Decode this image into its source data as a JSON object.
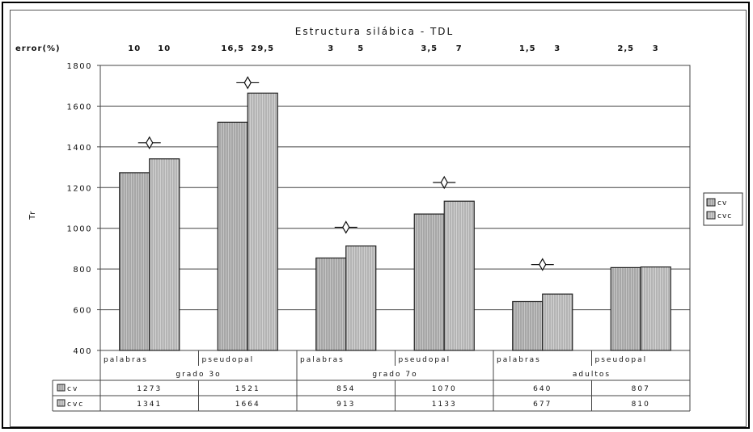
{
  "chart_data": {
    "type": "bar",
    "title": "Estructura silábica - TDL",
    "ylabel": "Tr",
    "ylim": [
      400,
      1800
    ],
    "yticks": [
      400,
      600,
      800,
      1000,
      1200,
      1400,
      1600,
      1800
    ],
    "grid": true,
    "legend_position": "right",
    "error_row_label": "error(%)",
    "groups": [
      "grado 3o",
      "grado 7o",
      "adultos"
    ],
    "categories": [
      "palabras",
      "pseudopal",
      "palabras",
      "pseudopal",
      "palabras",
      "pseudopal"
    ],
    "series": [
      {
        "name": "cv",
        "values": [
          1273,
          1521,
          854,
          1070,
          640,
          807
        ],
        "errors": [
          "10",
          "16,5",
          "3",
          "3,5",
          "1,5",
          "2,5"
        ]
      },
      {
        "name": "cvc",
        "values": [
          1341,
          1664,
          913,
          1133,
          677,
          810
        ],
        "errors": [
          "10",
          "29,5",
          "5",
          "7",
          "3",
          "3"
        ]
      }
    ],
    "significance_markers": [
      1420,
      1715,
      1005,
      1225,
      822,
      null
    ],
    "colors": {
      "cv": "#b4b4b4",
      "cvc": "#c8c8c8",
      "hatch": "#8a8a8a",
      "grid": "#444444"
    }
  }
}
